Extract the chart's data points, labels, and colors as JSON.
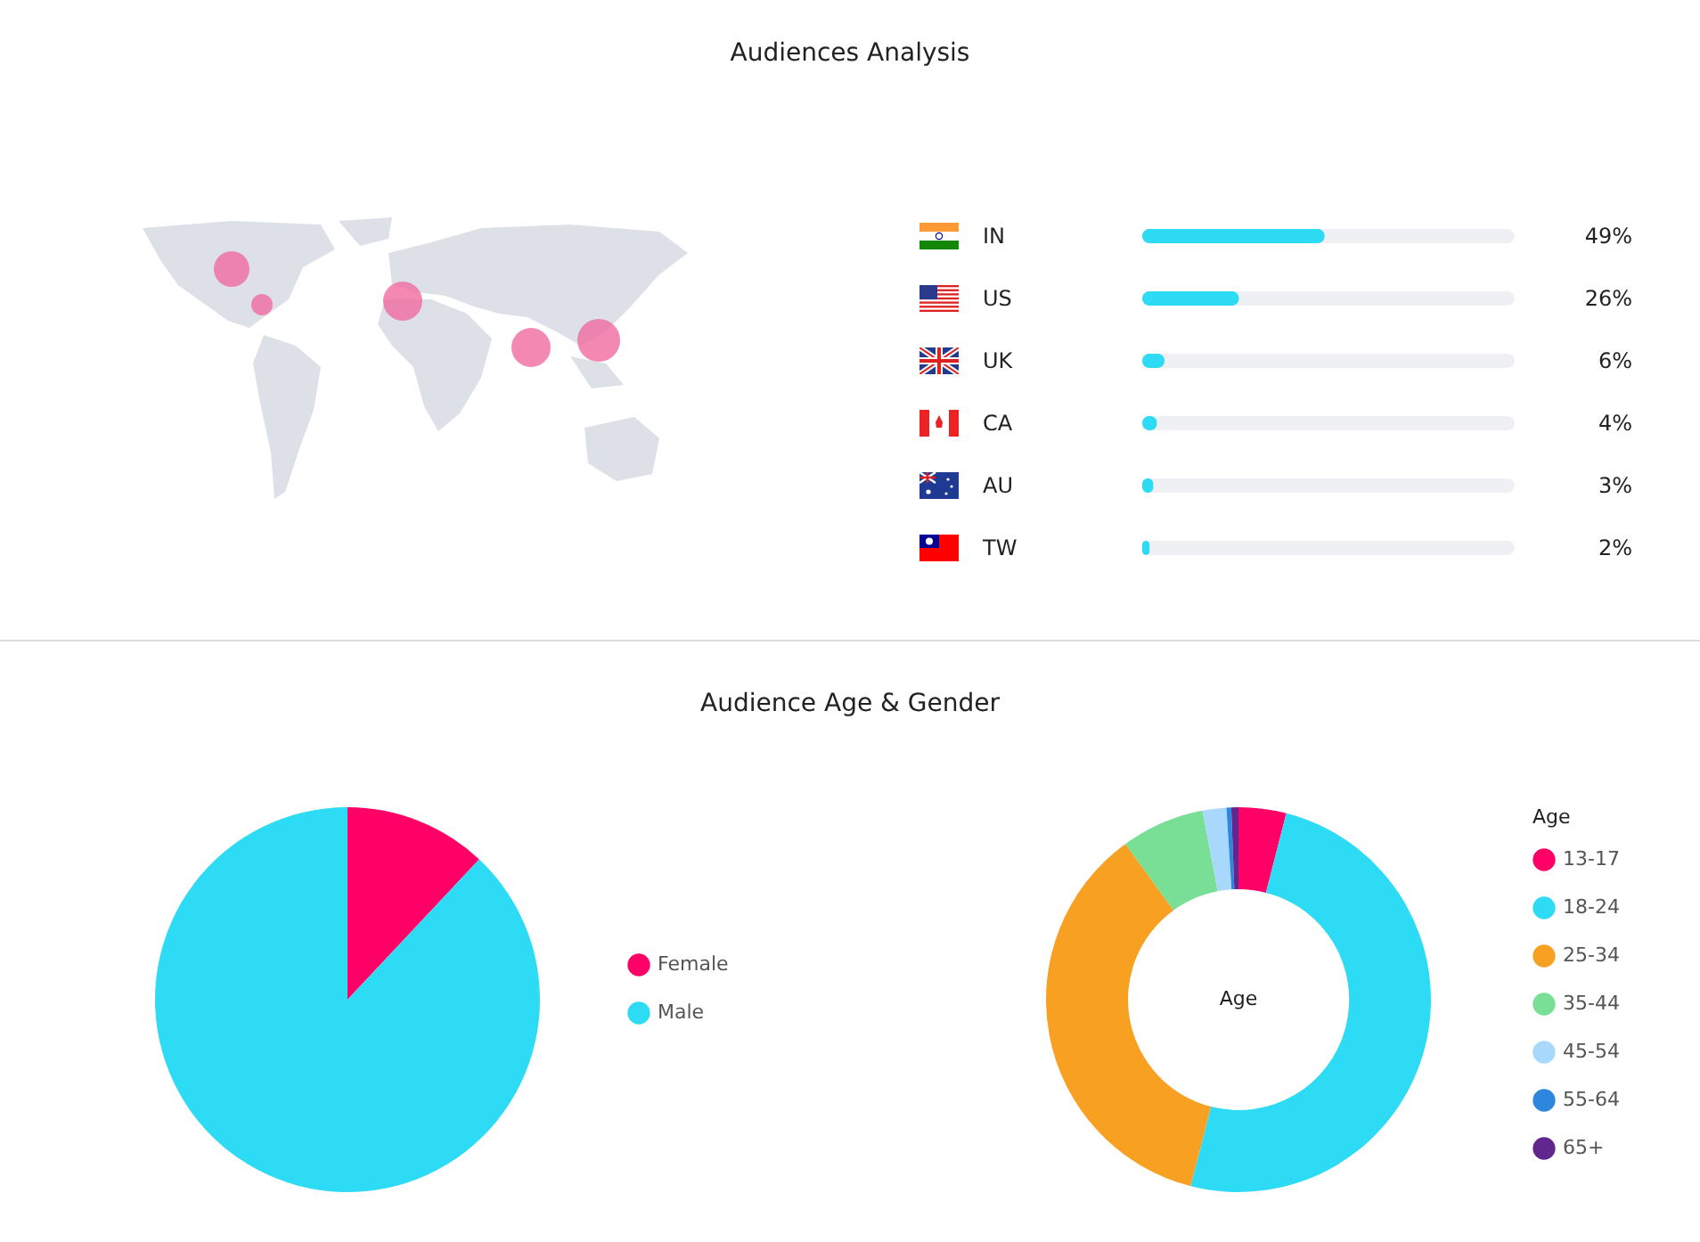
{
  "chart_data": [
    {
      "type": "bar",
      "orientation": "horizontal",
      "title": "Audiences Analysis",
      "categories": [
        "IN",
        "US",
        "UK",
        "CA",
        "AU",
        "TW"
      ],
      "values": [
        49,
        26,
        6,
        4,
        3,
        2
      ],
      "color": "#2ddbf5",
      "value_labels": [
        "49%",
        "26%",
        "6%",
        "4%",
        "3%",
        "2%"
      ],
      "xlim": [
        0,
        100
      ],
      "tick_labels": "y",
      "legend": false
    },
    {
      "type": "pie",
      "title": "Audience Age & Gender",
      "categories": [
        "Female",
        "Male"
      ],
      "values": [
        12,
        88
      ],
      "colors": [
        "#ff0066",
        "#2ddbf5"
      ],
      "legend": "right"
    },
    {
      "type": "donut",
      "legend_title": "Age",
      "annotations": [
        "Age"
      ],
      "categories": [
        "13-17",
        "18-24",
        "25-34",
        "35-44",
        "45-54",
        "55-64",
        "65+"
      ],
      "values": [
        4,
        50,
        36,
        7,
        2,
        0.4,
        0.6
      ],
      "colors": [
        "#ff0066",
        "#2ddbf5",
        "#f7a021",
        "#7adf96",
        "#a8d8fb",
        "#2f86dd",
        "#62278f"
      ],
      "legend": "right"
    }
  ]
}
